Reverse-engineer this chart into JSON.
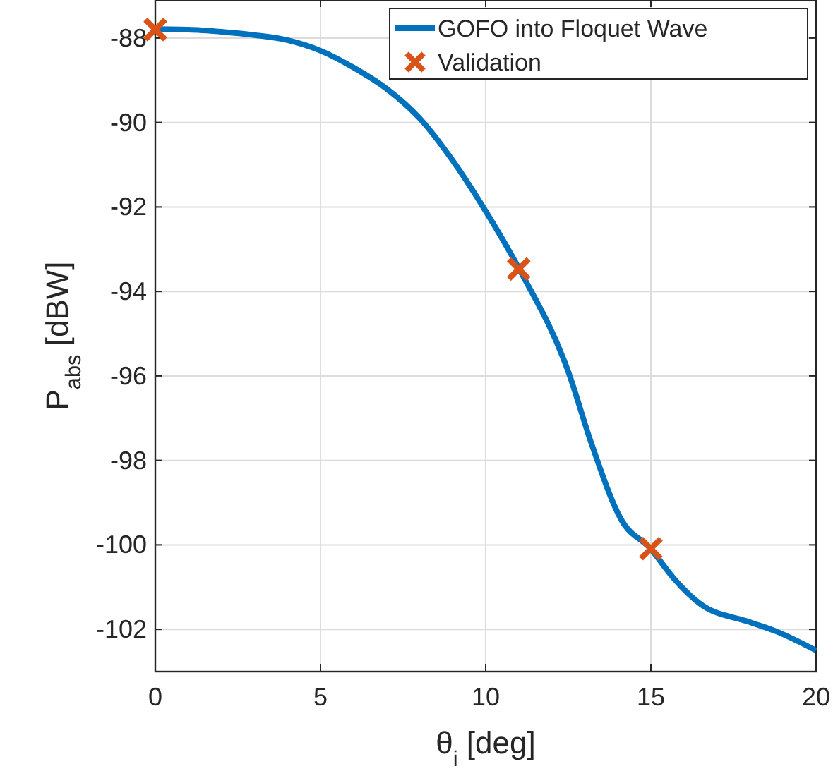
{
  "chart_data": {
    "type": "line",
    "xlabel": "θ$_{i}$ [deg]",
    "ylabel": "P$_{abs}$ [dBW]",
    "xlim": [
      0,
      20
    ],
    "ylim": [
      -103,
      -87.1
    ],
    "xticks": [
      0,
      5,
      10,
      15,
      20
    ],
    "yticks": [
      -102,
      -100,
      -98,
      -96,
      -94,
      -92,
      -90,
      -88
    ],
    "grid": true,
    "legend": "top right",
    "series": [
      {
        "name": "GOFO into Floquet Wave",
        "color": "#0072bd",
        "marker": "none",
        "line_style": "solid",
        "x": [
          0,
          1,
          2,
          3,
          4,
          5,
          6,
          7,
          8,
          9,
          10,
          11,
          12.5,
          13.2,
          14.1,
          15,
          15.7,
          16.5,
          18,
          18.8,
          20
        ],
        "values": [
          -87.79,
          -87.8,
          -87.85,
          -87.93,
          -88.05,
          -88.3,
          -88.7,
          -89.2,
          -89.9,
          -90.9,
          -92.1,
          -93.45,
          -95.9,
          -97.6,
          -99.4,
          -100.1,
          -100.8,
          -101.4,
          -101.83,
          -102.05,
          -102.5
        ]
      },
      {
        "name": "Validation",
        "type": "scatter",
        "color": "#d95319",
        "marker": "cross",
        "x": [
          0,
          11,
          15
        ],
        "values": [
          -87.8,
          -93.47,
          -100.09
        ]
      }
    ]
  }
}
